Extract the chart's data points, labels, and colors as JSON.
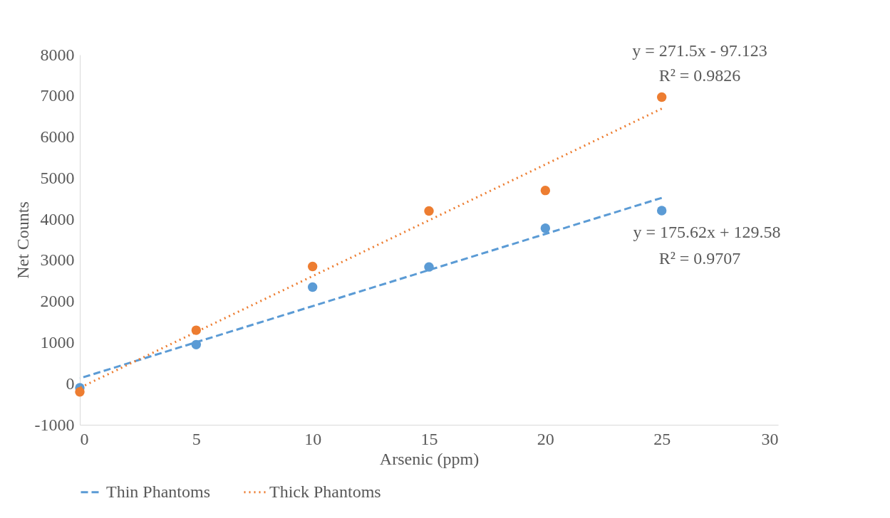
{
  "chart_data": {
    "type": "scatter",
    "xlabel": "Arsenic (ppm)",
    "ylabel": "Net Counts",
    "xlim": [
      0,
      30
    ],
    "xticks": [
      0,
      5,
      10,
      15,
      20,
      25,
      30
    ],
    "ylim": [
      -1000,
      8000
    ],
    "yticks": [
      -1000,
      0,
      1000,
      2000,
      3000,
      4000,
      5000,
      6000,
      7000,
      8000
    ],
    "grid": false,
    "legend": "bottom",
    "marker": "circle",
    "series": [
      {
        "color": "#5b9bd5",
        "x": [
          0,
          5,
          10,
          15,
          20,
          25
        ],
        "values": [
          -100,
          950,
          2350,
          2840,
          3780,
          4210
        ]
      },
      {
        "color": "#ed7d31",
        "x": [
          0,
          5,
          10,
          15,
          20,
          25
        ],
        "values": [
          -200,
          1300,
          2850,
          4200,
          4700,
          6970
        ]
      },
      {
        "name": "Thin Phantoms",
        "type": "line",
        "line_style": "dashed",
        "marker": "none",
        "color": "#5b9bd5",
        "x": [
          0,
          25
        ],
        "values": [
          130,
          4520
        ]
      },
      {
        "name": "Thick Phantoms",
        "type": "line",
        "line_style": "dotted",
        "marker": "none",
        "color": "#ed7d31",
        "x": [
          0,
          25
        ],
        "values": [
          -100,
          6690
        ]
      }
    ],
    "annotations": [
      "y = 271.5x - 97.123",
      "R² = 0.9826",
      "y = 175.62x + 129.58",
      "R² = 0.9707"
    ]
  }
}
